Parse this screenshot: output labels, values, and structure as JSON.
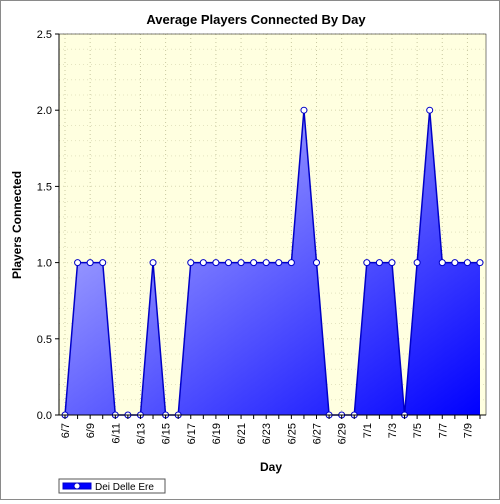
{
  "chart_data": {
    "type": "area",
    "title": "Average Players Connected By Day",
    "xlabel": "Day",
    "ylabel": "Players Connected",
    "ylim": [
      0,
      2.5
    ],
    "yticks": [
      "0.0",
      "0.5",
      "1.0",
      "1.5",
      "2.0",
      "2.5"
    ],
    "categories": [
      "6/7",
      "6/8",
      "6/9",
      "6/10",
      "6/11",
      "6/12",
      "6/13",
      "6/14",
      "6/15",
      "6/16",
      "6/17",
      "6/18",
      "6/19",
      "6/20",
      "6/21",
      "6/22",
      "6/23",
      "6/24",
      "6/25",
      "6/26",
      "6/27",
      "6/28",
      "6/29",
      "6/30",
      "7/1",
      "7/2",
      "7/3",
      "7/4",
      "7/5",
      "7/6",
      "7/7",
      "7/8",
      "7/9",
      "7/10"
    ],
    "tick_labels": [
      "6/7",
      "6/9",
      "6/11",
      "6/13",
      "6/15",
      "6/17",
      "6/19",
      "6/21",
      "6/23",
      "6/25",
      "6/27",
      "6/29",
      "7/1",
      "7/3",
      "7/5",
      "7/7",
      "7/9"
    ],
    "series": [
      {
        "name": "Dei Delle Ere",
        "values": [
          0,
          1,
          1,
          1,
          0,
          0,
          0,
          1,
          0,
          0,
          1,
          1,
          1,
          1,
          1,
          1,
          1,
          1,
          1,
          2,
          1,
          0,
          0,
          0,
          1,
          1,
          1,
          0,
          1,
          2,
          1,
          1,
          1,
          1
        ]
      }
    ],
    "grid": true,
    "legend": "bottom-left",
    "colors": {
      "plot_bg": "#ffffe0",
      "fill_start": "#c8c8ff",
      "fill_end": "#0000ff",
      "line": "#0000c8",
      "grid": "#c8c8a0"
    }
  }
}
